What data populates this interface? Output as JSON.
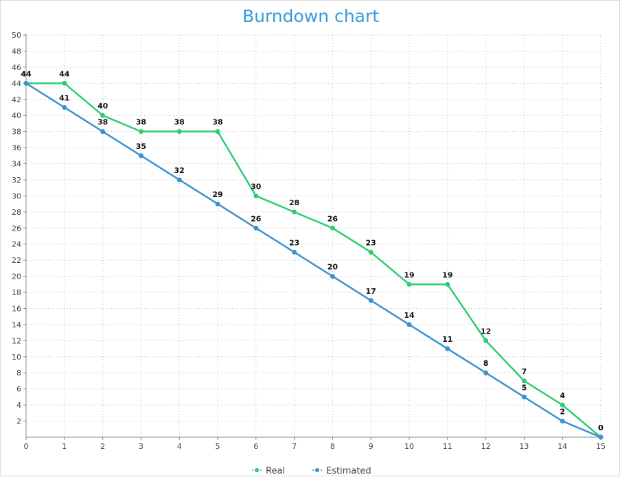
{
  "chart_data": {
    "type": "line",
    "title": "Burndown chart",
    "xlabel": "",
    "ylabel": "",
    "x": [
      0,
      1,
      2,
      3,
      4,
      5,
      6,
      7,
      8,
      9,
      10,
      11,
      12,
      13,
      14,
      15
    ],
    "xlim": [
      0,
      15
    ],
    "ylim": [
      0,
      50
    ],
    "y_ticks": [
      2,
      4,
      6,
      8,
      10,
      12,
      14,
      16,
      18,
      20,
      22,
      24,
      26,
      28,
      30,
      32,
      34,
      36,
      38,
      40,
      42,
      44,
      46,
      48,
      50
    ],
    "grid": true,
    "legend_position": "bottom-center",
    "series": [
      {
        "name": "Real",
        "color": "#2ecc71",
        "values": [
          44,
          44,
          40,
          38,
          38,
          38,
          30,
          28,
          26,
          23,
          19,
          19,
          12,
          7,
          4,
          0
        ]
      },
      {
        "name": "Estimated",
        "color": "#3a92cf",
        "values": [
          44,
          41,
          38,
          35,
          32,
          29,
          26,
          23,
          20,
          17,
          14,
          11,
          8,
          5,
          2,
          0
        ]
      }
    ]
  }
}
